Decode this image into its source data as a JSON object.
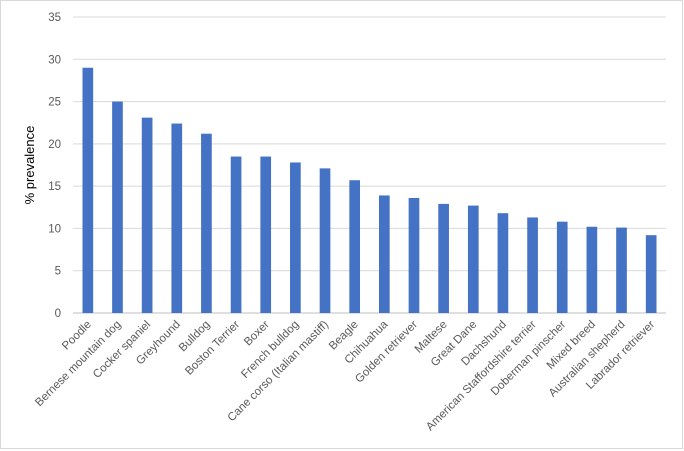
{
  "chart_data": {
    "type": "bar",
    "title": "",
    "xlabel": "",
    "ylabel": "% prevalence",
    "ylim": [
      0,
      35
    ],
    "yticks": [
      0,
      5,
      10,
      15,
      20,
      25,
      30,
      35
    ],
    "grid": true,
    "legend": "none",
    "bar_color": "#4472c4",
    "categories": [
      "Poodle",
      "Bernese mountain dog",
      "Cocker spaniel",
      "Greyhound",
      "Bulldog",
      "Boston Terrier",
      "Boxer",
      "French bulldog",
      "Cane corso (Italian mastiff)",
      "Beagle",
      "Chihuahua",
      "Golden retriever",
      "Maltese",
      "Great Dane",
      "Dachshund",
      "American Staffordshire terrier",
      "Doberman pinscher",
      "Mixed breed",
      "Australian shepherd",
      "Labrador retriever"
    ],
    "values": [
      29.0,
      25.0,
      23.1,
      22.4,
      21.2,
      18.5,
      18.5,
      17.8,
      17.1,
      15.7,
      13.9,
      13.6,
      12.9,
      12.7,
      11.8,
      11.3,
      10.8,
      10.2,
      10.1,
      9.2
    ]
  }
}
